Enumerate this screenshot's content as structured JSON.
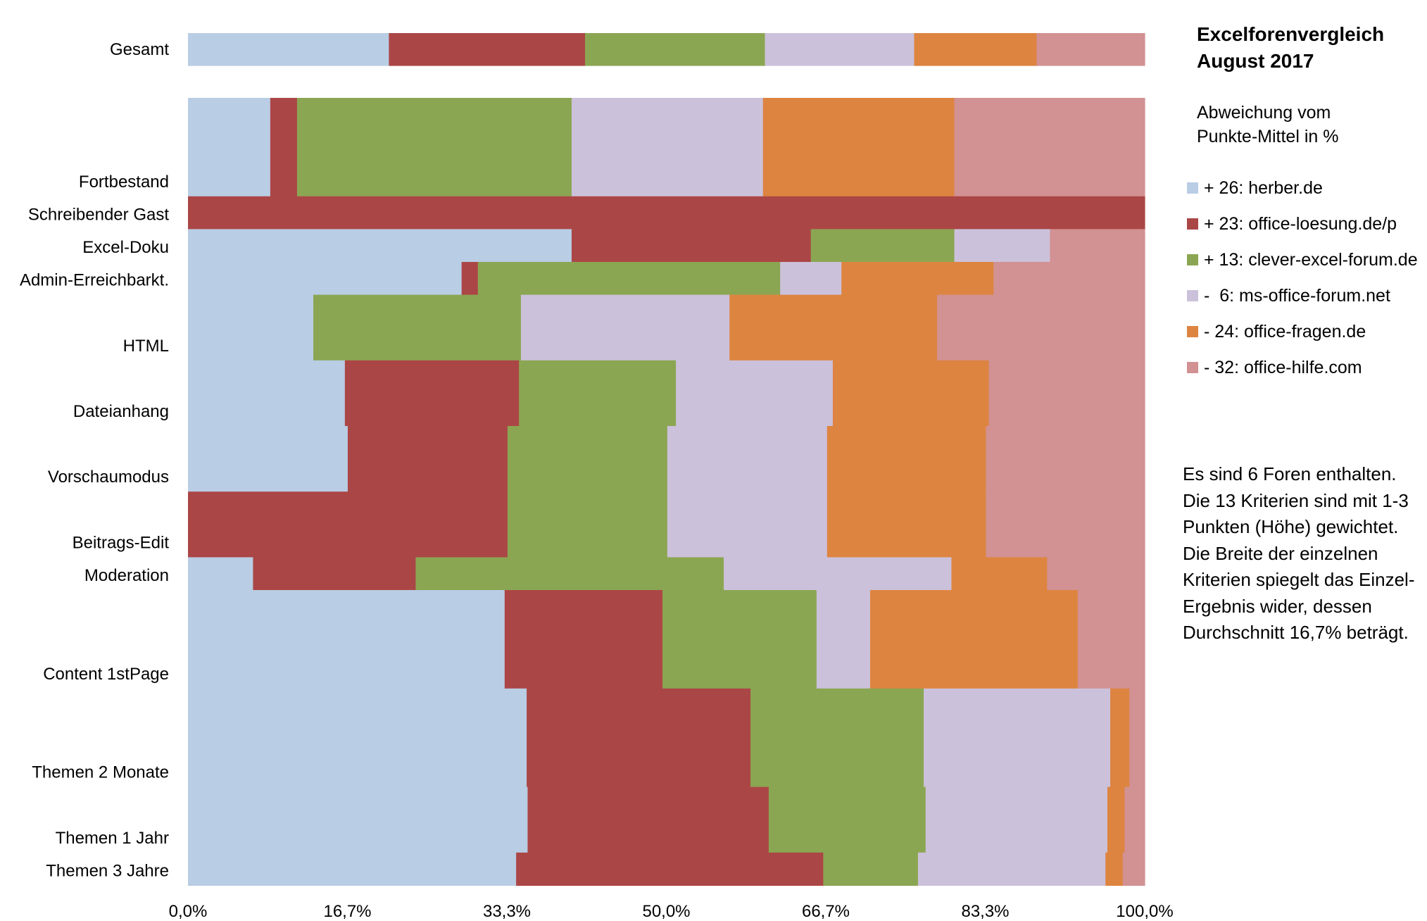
{
  "chart_data": {
    "type": "bar",
    "subtype": "stacked-100-percent-mekko",
    "title": "Excelforenvergleich August 2017",
    "subtitle": "Abweichung vom Punkte-Mittel in %",
    "x_ticks": [
      "0,0%",
      "16,7%",
      "33,3%",
      "50,0%",
      "66,7%",
      "83,3%",
      "100,0%"
    ],
    "xlim": [
      0,
      100
    ],
    "series": [
      {
        "label": "+ 26: herber.de",
        "color": "#B9CDE4"
      },
      {
        "label": "+ 23: office-loesung.de/p",
        "color": "#AB4646"
      },
      {
        "label": "+ 13: clever-excel-forum.de",
        "color": "#8BA652"
      },
      {
        "label": "-  6: ms-office-forum.net",
        "color": "#CCC1DA"
      },
      {
        "label": "- 24: office-fragen.de",
        "color": "#DD8440"
      },
      {
        "label": "- 32: office-hilfe.com",
        "color": "#D29192"
      }
    ],
    "rows": [
      {
        "category": "Gesamt",
        "weight": 0,
        "values": [
          21.0,
          20.5,
          18.8,
          15.6,
          12.8,
          11.3
        ]
      },
      {
        "category": "Fortbestand",
        "weight": 3,
        "values": [
          8.6,
          2.8,
          28.7,
          20.0,
          20.0,
          19.9
        ]
      },
      {
        "category": "Schreibender Gast",
        "weight": 1,
        "values": [
          0,
          100,
          0,
          0,
          0,
          0
        ]
      },
      {
        "category": "Excel-Doku",
        "weight": 1,
        "values": [
          40.1,
          25.0,
          15.0,
          10.0,
          0,
          9.9
        ]
      },
      {
        "category": "Admin-Erreichbarkt.",
        "weight": 1,
        "values": [
          28.6,
          1.7,
          31.6,
          6.4,
          15.9,
          15.8
        ]
      },
      {
        "category": "HTML",
        "weight": 2,
        "values": [
          13.1,
          0,
          21.7,
          21.8,
          21.7,
          21.7
        ]
      },
      {
        "category": "Dateianhang",
        "weight": 2,
        "values": [
          16.4,
          18.2,
          16.4,
          16.4,
          16.3,
          16.3
        ]
      },
      {
        "category": "Vorschaumodus",
        "weight": 2,
        "values": [
          16.7,
          16.7,
          16.7,
          16.7,
          16.6,
          16.6
        ]
      },
      {
        "category": "Beitrags-Edit",
        "weight": 2,
        "values": [
          0,
          33.4,
          16.7,
          16.7,
          16.6,
          16.6
        ]
      },
      {
        "category": "Moderation",
        "weight": 1,
        "values": [
          6.8,
          17.0,
          32.2,
          23.8,
          10.0,
          10.2
        ]
      },
      {
        "category": "Content 1stPage",
        "weight": 3,
        "values": [
          33.1,
          16.5,
          16.1,
          5.6,
          21.7,
          7.0
        ]
      },
      {
        "category": "Themen 2 Monate",
        "weight": 3,
        "values": [
          35.4,
          23.4,
          18.1,
          19.5,
          2.0,
          1.6
        ]
      },
      {
        "category": "Themen 1 Jahr",
        "weight": 2,
        "values": [
          35.5,
          25.2,
          16.4,
          19.0,
          1.8,
          2.1
        ]
      },
      {
        "category": "Themen 3 Jahre",
        "weight": 1,
        "values": [
          34.3,
          32.1,
          9.9,
          19.6,
          1.8,
          2.3
        ]
      }
    ]
  },
  "legend": {
    "title_line1": "Excelforenvergleich",
    "title_line2": "August 2017",
    "subtitle_line1": "Abweichung vom",
    "subtitle_line2": "Punkte-Mittel in %"
  },
  "note": "Es sind 6 Foren enthalten. Die 13 Kriterien sind mit 1-3 Punkten (Höhe) gewichtet. Die Breite der einzelnen Kriterien spiegelt das Einzel-Ergebnis wider, dessen Durchschnitt 16,7% beträgt."
}
